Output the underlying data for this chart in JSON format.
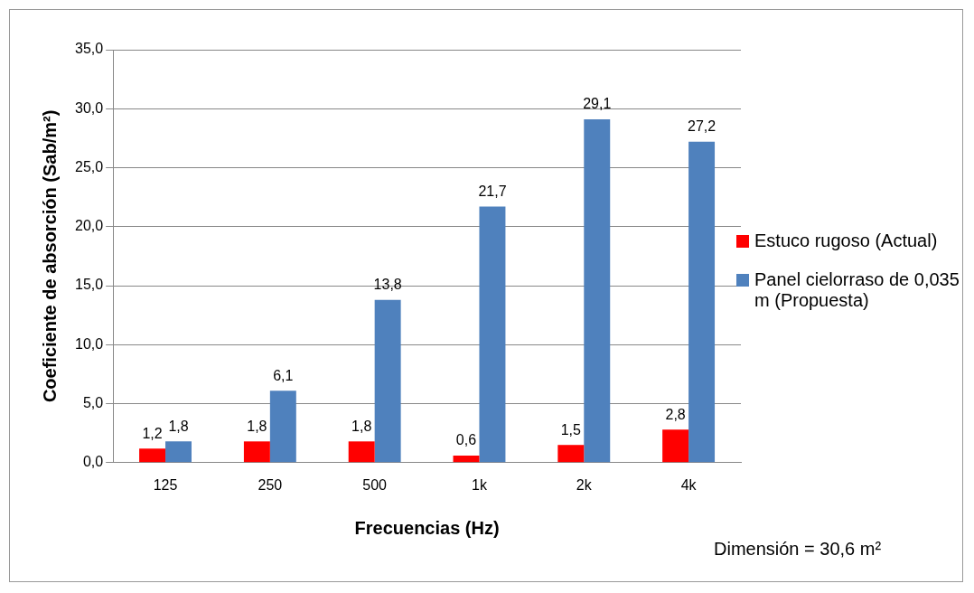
{
  "chart_data": {
    "type": "bar",
    "xlabel": "Frecuencias (Hz)",
    "ylabel": "Coeficiente de absorción (Sab/m²)",
    "categories": [
      "125",
      "250",
      "500",
      "1k",
      "2k",
      "4k"
    ],
    "series": [
      {
        "name": "Estuco rugoso (Actual)",
        "color": "#ff0000",
        "values": [
          1.2,
          1.8,
          1.8,
          0.6,
          1.5,
          2.8
        ],
        "value_labels": [
          "1,2",
          "1,8",
          "1,8",
          "0,6",
          "1,5",
          "2,8"
        ]
      },
      {
        "name": "Panel cielorraso de 0,035 m (Propuesta)",
        "color": "#4f81bd",
        "values": [
          1.8,
          6.1,
          13.8,
          21.7,
          29.1,
          27.2
        ],
        "value_labels": [
          "1,8",
          "6,1",
          "13,8",
          "21,7",
          "29,1",
          "27,2"
        ]
      }
    ],
    "ylim": [
      0,
      35
    ],
    "yticks": [
      {
        "value": 0,
        "label": "0,0"
      },
      {
        "value": 5,
        "label": "5,0"
      },
      {
        "value": 10,
        "label": "10,0"
      },
      {
        "value": 15,
        "label": "15,0"
      },
      {
        "value": 20,
        "label": "20,0"
      },
      {
        "value": 25,
        "label": "25,0"
      },
      {
        "value": 30,
        "label": "30,0"
      },
      {
        "value": 35,
        "label": "35,0"
      }
    ],
    "grid": "y",
    "legend": "right",
    "annotations": [
      "Dimensión = 30,6 m²"
    ]
  }
}
